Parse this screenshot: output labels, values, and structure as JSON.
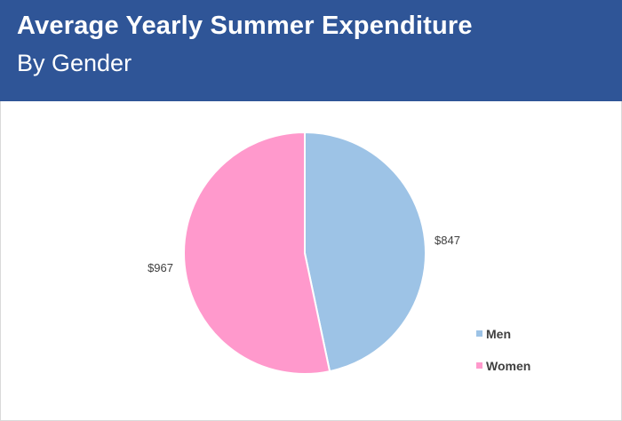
{
  "header": {
    "title": "Average Yearly Summer Expenditure",
    "subtitle": "By Gender"
  },
  "colors": {
    "header_bg": "#2f5597",
    "men": "#9dc3e6",
    "women": "#ff99cc"
  },
  "chart_data": {
    "type": "pie",
    "title": "Average Yearly Summer Expenditure",
    "subtitle": "By Gender",
    "categories": [
      "Men",
      "Women"
    ],
    "values": [
      847,
      967
    ],
    "data_labels": [
      "$847",
      "$967"
    ],
    "colors": [
      "#9dc3e6",
      "#ff99cc"
    ],
    "legend": {
      "position": "right-bottom",
      "entries": [
        "Men",
        "Women"
      ]
    }
  }
}
